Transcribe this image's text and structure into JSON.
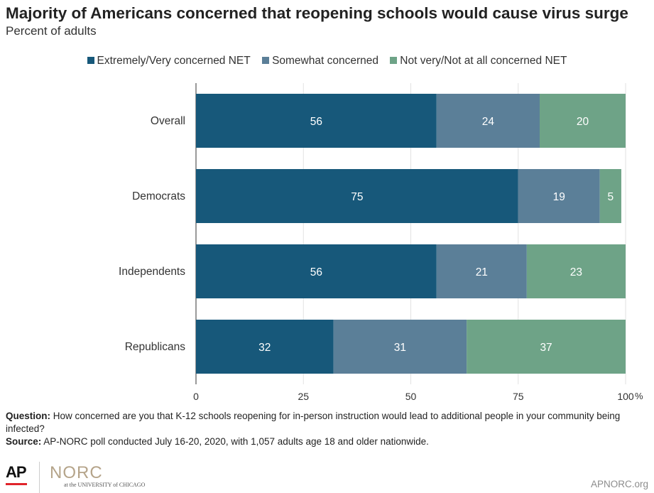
{
  "header": {
    "title": "Majority of Americans concerned that reopening schools would cause virus surge",
    "subtitle": "Percent of adults"
  },
  "chart_data": {
    "type": "bar",
    "orientation": "horizontal",
    "stacked": true,
    "categories": [
      "Overall",
      "Democrats",
      "Independents",
      "Republicans"
    ],
    "series": [
      {
        "name": "Extremely/Very concerned NET",
        "values": [
          56,
          75,
          56,
          32
        ],
        "color": "#17587a"
      },
      {
        "name": "Somewhat concerned",
        "values": [
          24,
          19,
          21,
          31
        ],
        "color": "#5b7f98"
      },
      {
        "name": "Not very/Not at all concerned NET",
        "values": [
          20,
          5,
          23,
          37
        ],
        "color": "#6ea387"
      }
    ],
    "xlim": [
      0,
      100
    ],
    "xticks": [
      "0",
      "25",
      "50",
      "75",
      "100"
    ],
    "x_unit": "%",
    "grid": true,
    "legend_position": "top"
  },
  "footer": {
    "question_label": "Question:",
    "question_text": "How concerned are you that K-12 schools reopening for in-person instruction would lead to additional people in your community being infected?",
    "source_label": "Source:",
    "source_text": "AP-NORC poll conducted July 16-20, 2020, with 1,057 adults age 18 and older nationwide.",
    "logo_ap": "AP",
    "logo_norc": "NORC",
    "logo_norc_sub": "at the UNIVERSITY of CHICAGO",
    "url": "APNORC.org"
  }
}
